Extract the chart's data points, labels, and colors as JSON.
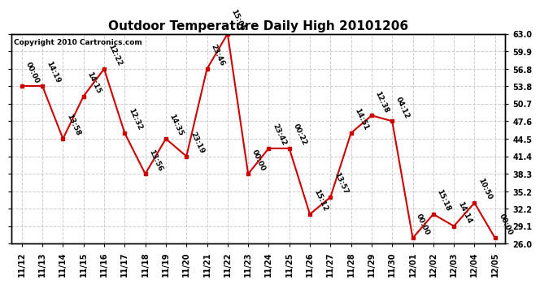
{
  "title": "Outdoor Temperature Daily High 20101206",
  "copyright": "Copyright 2010 Cartronics.com",
  "background_color": "#ffffff",
  "plot_bg_color": "#ffffff",
  "grid_color": "#cccccc",
  "line_color": "#cc0000",
  "marker_color": "#cc0000",
  "x_labels": [
    "11/12",
    "11/13",
    "11/14",
    "11/15",
    "11/16",
    "11/17",
    "11/18",
    "11/19",
    "11/20",
    "11/21",
    "11/22",
    "11/23",
    "11/24",
    "11/25",
    "11/26",
    "11/27",
    "11/28",
    "11/29",
    "11/30",
    "12/01",
    "12/02",
    "12/03",
    "12/04",
    "12/05"
  ],
  "y_values": [
    53.8,
    53.8,
    44.5,
    52.0,
    56.8,
    45.5,
    38.3,
    44.5,
    41.4,
    56.8,
    63.0,
    38.3,
    42.8,
    42.8,
    31.2,
    34.2,
    45.5,
    48.6,
    47.6,
    27.0,
    31.2,
    29.1,
    33.2,
    27.0
  ],
  "point_labels": [
    "00:00",
    "14:19",
    "13:58",
    "14:15",
    "12:22",
    "12:32",
    "13:56",
    "14:35",
    "23:19",
    "23:46",
    "15:05",
    "00:00",
    "23:42",
    "00:22",
    "15:12",
    "13:57",
    "14:51",
    "12:38",
    "04:12",
    "00:00",
    "15:18",
    "14:14",
    "10:50",
    "00:00"
  ],
  "yticks": [
    26.0,
    29.1,
    32.2,
    35.2,
    38.3,
    41.4,
    44.5,
    47.6,
    50.7,
    53.8,
    56.8,
    59.9,
    63.0
  ],
  "ylim": [
    26.0,
    63.0
  ],
  "title_fontsize": 11,
  "label_fontsize": 6.5,
  "tick_fontsize": 7,
  "copyright_fontsize": 6.5
}
